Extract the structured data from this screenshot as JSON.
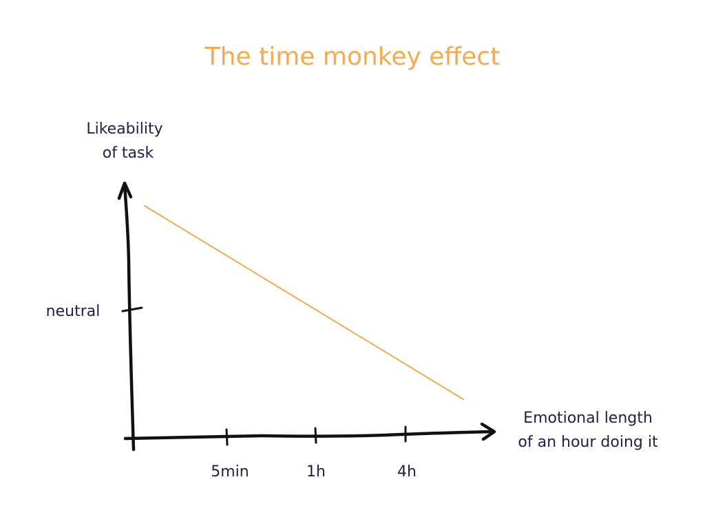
{
  "chart_data": {
    "type": "line",
    "title": "The time monkey effect",
    "ylabel_lines": [
      "Likeability",
      "of task"
    ],
    "xlabel_lines": [
      "Emotional length",
      "of an hour doing it"
    ],
    "x_ticks": [
      "5min",
      "1h",
      "4h"
    ],
    "y_ticks": [
      "neutral"
    ],
    "series": [
      {
        "values": [
          {
            "x": "start",
            "y": "high"
          },
          {
            "x": "end",
            "y": "low"
          }
        ]
      }
    ],
    "colors": {
      "title": "#f6a94f",
      "series": "#f6a94f",
      "labels": "#1f1f4a",
      "axes": "#111111"
    },
    "grid": false
  }
}
